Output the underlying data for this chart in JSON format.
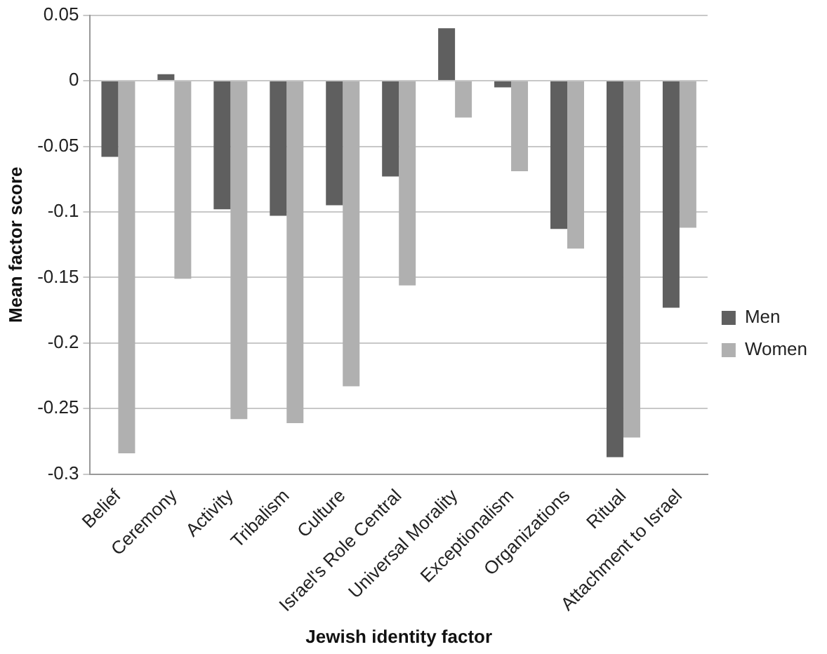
{
  "chart_data": {
    "type": "bar",
    "xlabel": "Jewish identity factor",
    "ylabel": "Mean factor score",
    "categories": [
      "Belief",
      "Ceremony",
      "Activity",
      "Tribalism",
      "Culture",
      "Israel's Role Central",
      "Universal Morality",
      "Exceptionalism",
      "Organizations",
      "Ritual",
      "Attachment to Israel"
    ],
    "series": [
      {
        "name": "Men",
        "color": "#5f5f5f",
        "values": [
          -0.058,
          0.005,
          -0.098,
          -0.103,
          -0.095,
          -0.073,
          0.04,
          -0.005,
          -0.113,
          -0.287,
          -0.173
        ]
      },
      {
        "name": "Women",
        "color": "#b0b0b0",
        "values": [
          -0.284,
          -0.151,
          -0.258,
          -0.261,
          -0.233,
          -0.156,
          -0.028,
          -0.069,
          -0.128,
          -0.272,
          -0.112
        ]
      }
    ],
    "ylim": [
      -0.3,
      0.05
    ],
    "yticks": [
      -0.3,
      -0.25,
      -0.2,
      -0.15,
      -0.1,
      -0.05,
      0,
      0.05
    ],
    "grid": "y",
    "legend": "right"
  }
}
